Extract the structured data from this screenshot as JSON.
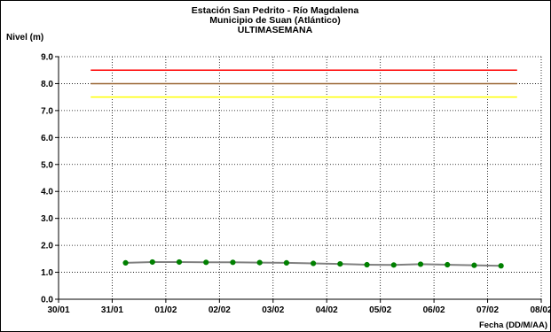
{
  "chart_data": {
    "type": "line",
    "title": "Estación San Pedrito - Río  Magdalena",
    "subtitle": "Municipio de Suan (Atlántico)",
    "subtitle2": "ULTIMASEMANA",
    "ylabel": "Nivel (m)",
    "xlabel": "Fecha (DD/M/AA)",
    "ylim": [
      0,
      9
    ],
    "yticks": [
      "0.0",
      "1.0",
      "2.0",
      "3.0",
      "4.0",
      "5.0",
      "6.0",
      "7.0",
      "8.0",
      "9.0"
    ],
    "xlim": [
      0,
      9
    ],
    "xticks": [
      "30/01",
      "31/01",
      "01/02",
      "02/02",
      "03/02",
      "04/02",
      "05/02",
      "06/02",
      "07/02",
      "08/02"
    ],
    "grid": true,
    "thresholds": [
      {
        "value": 8.5,
        "color": "#ff0000",
        "x": [
          0.6,
          8.55
        ]
      },
      {
        "value": 8.0,
        "color": "#996633",
        "x": [
          0.6,
          8.55
        ]
      },
      {
        "value": 7.5,
        "color": "#ffff00",
        "x": [
          0.6,
          8.55
        ]
      }
    ],
    "series": [
      {
        "line_color": "#808080",
        "marker_color": "#008000",
        "x": [
          1.25,
          1.75,
          2.25,
          2.75,
          3.25,
          3.75,
          4.25,
          4.75,
          5.25,
          5.75,
          6.25,
          6.75,
          7.25,
          7.75,
          8.25
        ],
        "y": [
          1.35,
          1.38,
          1.38,
          1.37,
          1.37,
          1.36,
          1.35,
          1.33,
          1.31,
          1.28,
          1.27,
          1.3,
          1.28,
          1.26,
          1.24
        ]
      }
    ]
  }
}
